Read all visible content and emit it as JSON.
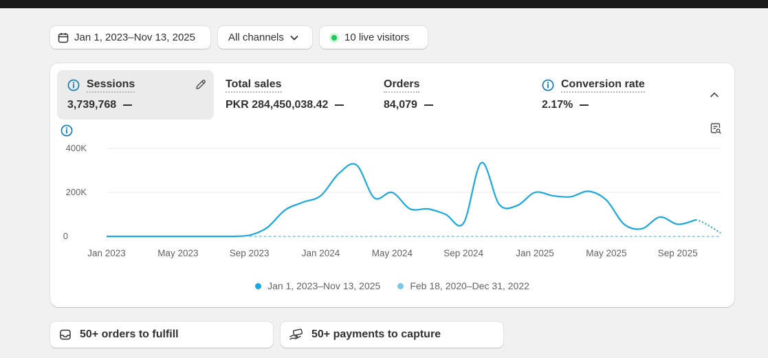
{
  "filters": {
    "date_range": "Jan 1, 2023–Nov 13, 2025",
    "channels": "All channels",
    "live_visitors": "10 live visitors"
  },
  "metrics": [
    {
      "label": "Sessions",
      "value": "3,739,768"
    },
    {
      "label": "Total sales",
      "value": "PKR 284,450,038.42"
    },
    {
      "label": "Orders",
      "value": "84,079"
    },
    {
      "label": "Conversion rate",
      "value": "2.17%"
    }
  ],
  "colors": {
    "primary_series": "#1aa7e0",
    "comparison_series": "#7cc6e5",
    "live": "#22c55e",
    "info_icon": "#0a7bb8"
  },
  "icons": {
    "date": "calendar-icon",
    "channels": "chevron-down-icon",
    "live": "live-dot-icon",
    "info": "info-icon",
    "edit": "pencil-icon",
    "collapse": "chevron-up-icon",
    "report": "report-search-icon",
    "orders_task": "inbox-icon",
    "payments_task": "hand-money-icon"
  },
  "chart_data": {
    "type": "line",
    "x_ticks": [
      "Jan 2023",
      "May 2023",
      "Sep 2023",
      "Jan 2024",
      "May 2024",
      "Sep 2024",
      "Jan 2025",
      "May 2025",
      "Sep 2025"
    ],
    "y_ticks": [
      "0",
      "200K",
      "400K"
    ],
    "ylim": [
      0,
      400000
    ],
    "grid": true,
    "legend_position": "bottom",
    "x": [
      "2023-01",
      "2023-02",
      "2023-03",
      "2023-04",
      "2023-05",
      "2023-06",
      "2023-07",
      "2023-08",
      "2023-09",
      "2023-10",
      "2023-11",
      "2023-12",
      "2024-01",
      "2024-02",
      "2024-03",
      "2024-04",
      "2024-05",
      "2024-06",
      "2024-07",
      "2024-08",
      "2024-09",
      "2024-10",
      "2024-11",
      "2024-12",
      "2025-01",
      "2025-02",
      "2025-03",
      "2025-04",
      "2025-05",
      "2025-06",
      "2025-07",
      "2025-08",
      "2025-09",
      "2025-10",
      "2025-11"
    ],
    "series": [
      {
        "name": "Jan 1, 2023–Nov 13, 2025",
        "values": [
          0,
          0,
          0,
          0,
          0,
          0,
          0,
          0,
          5000,
          40000,
          120000,
          155000,
          185000,
          285000,
          325000,
          175000,
          200000,
          125000,
          125000,
          100000,
          60000,
          335000,
          145000,
          140000,
          200000,
          185000,
          180000,
          205000,
          165000,
          55000,
          35000,
          88000,
          55000,
          75000,
          15000
        ]
      },
      {
        "name": "Feb 18, 2020–Dec 31, 2022",
        "values": [
          0,
          0,
          0,
          0,
          0,
          0,
          0,
          0,
          0,
          0,
          0,
          0,
          0,
          0,
          0,
          0,
          0,
          0,
          0,
          0,
          0,
          0,
          0,
          0,
          0,
          0,
          0,
          0,
          0,
          0,
          0,
          0,
          0,
          0,
          0
        ]
      }
    ]
  },
  "tasks": [
    {
      "label": "50+ orders to fulfill"
    },
    {
      "label": "50+ payments to capture"
    }
  ]
}
